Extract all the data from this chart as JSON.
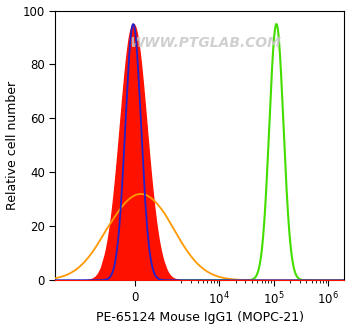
{
  "title": "WWW.PTGLAB.COM",
  "xlabel": "PE-65124 Mouse IgG1 (MOPC-21)",
  "ylabel": "Relative cell number",
  "ylim": [
    0,
    100
  ],
  "yticks": [
    0,
    20,
    40,
    60,
    80,
    100
  ],
  "background_color": "#ffffff",
  "watermark_color": "#c8c8c8",
  "symlog_linthresh": 1000,
  "symlog_linscale": 0.5,
  "xlim": [
    -8000,
    2000000
  ],
  "red_peak_x": -50,
  "red_peak_y": 95,
  "red_sigma": 0.22,
  "red_color": "#ff1100",
  "red_alpha": 1.0,
  "blue_peak_x": -50,
  "blue_peak_y": 95,
  "blue_sigma": 0.13,
  "blue_color": "#2222cc",
  "orange_peak_x": 200,
  "orange_peak_y": 32,
  "orange_sigma": 0.55,
  "orange_color": "#ff9900",
  "green_peak_log": 5.05,
  "green_peak_y": 95,
  "green_sigma": 0.13,
  "green_color": "#44dd00"
}
